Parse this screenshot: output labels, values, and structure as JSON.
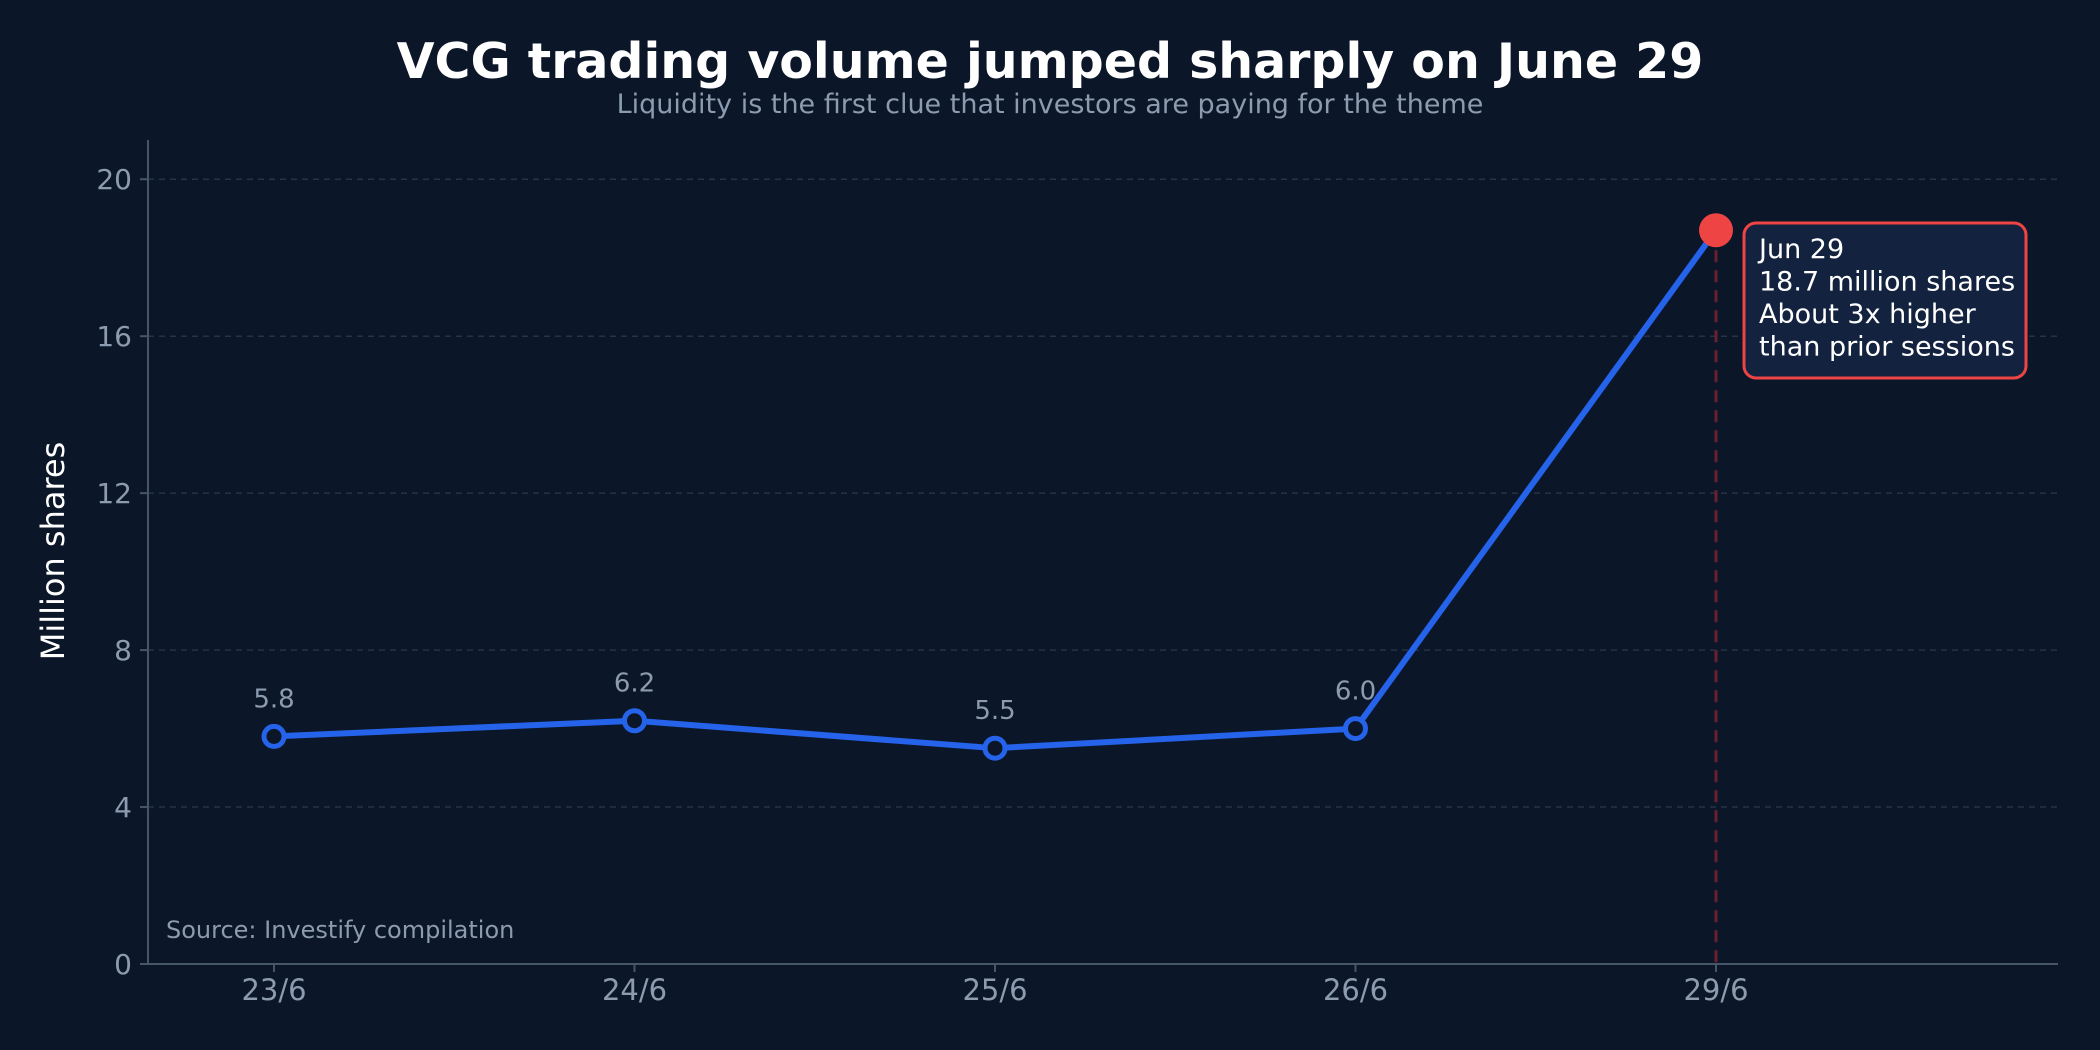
{
  "chart_data": {
    "type": "line",
    "title": "VCG trading volume jumped sharply on June 29",
    "subtitle": "Liquidity is the first clue that investors are paying for the theme",
    "ylabel": "Million shares",
    "xlabel": "",
    "categories": [
      "23/6",
      "24/6",
      "25/6",
      "26/6",
      "29/6"
    ],
    "series": [
      {
        "values": [
          5.8,
          6.2,
          5.5,
          6.0,
          18.7
        ]
      }
    ],
    "data_labels": [
      "5.8",
      "6.2",
      "5.5",
      "6.0"
    ],
    "ylim": [
      0,
      21
    ],
    "yticks": [
      0,
      4,
      8,
      12,
      16,
      20
    ],
    "grid": true,
    "highlight_index": 4,
    "annotation": {
      "lines": [
        "Jun 29",
        "18.7 million shares",
        "About 3x higher",
        "than prior sessions"
      ]
    },
    "source": "Source: Investify compilation",
    "colors": {
      "background": "#0b1628",
      "line": "#2563eb",
      "highlight": "#ef4444",
      "callout_fill": "#13223f",
      "grid": "#253248",
      "axis": "#475569",
      "muted_text": "#8c9bb0",
      "text": "#ffffff"
    }
  }
}
